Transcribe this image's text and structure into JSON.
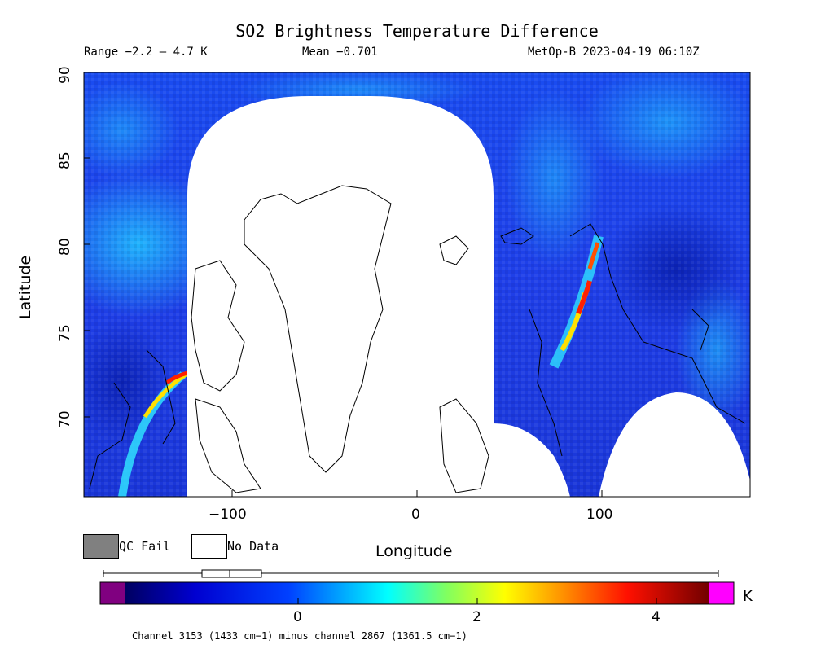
{
  "header": {
    "title": "SO2 Brightness Temperature Difference",
    "range": "Range −2.2 – 4.7 K",
    "mean": "Mean −0.701",
    "satellite": "MetOp-B 2023-04-19 06:10Z"
  },
  "axes": {
    "xlabel": "Longitude",
    "ylabel": "Latitude",
    "x_ticks": [
      "−100",
      "0",
      "100"
    ],
    "y_ticks": [
      "90",
      "85",
      "80",
      "75",
      "70"
    ],
    "x_range": [
      -180,
      180
    ],
    "y_range": [
      65.7,
      90
    ]
  },
  "legend": {
    "qc_fail": "QC Fail",
    "no_data": "No Data",
    "qc_fail_color": "#808080",
    "no_data_color": "#ffffff"
  },
  "colorbar": {
    "unit": "K",
    "ticks": [
      "0",
      "2",
      "4"
    ],
    "range": [
      -2.2,
      4.7
    ],
    "colors": [
      "#800080",
      "#000080",
      "#0000ff",
      "#0080ff",
      "#00ffff",
      "#80ff80",
      "#ffff00",
      "#ff8000",
      "#ff0000",
      "#800000",
      "#ff00ff"
    ]
  },
  "footnote": "Channel 3153 (1433 cm−1) minus channel 2867 (1361.5 cm−1)"
}
